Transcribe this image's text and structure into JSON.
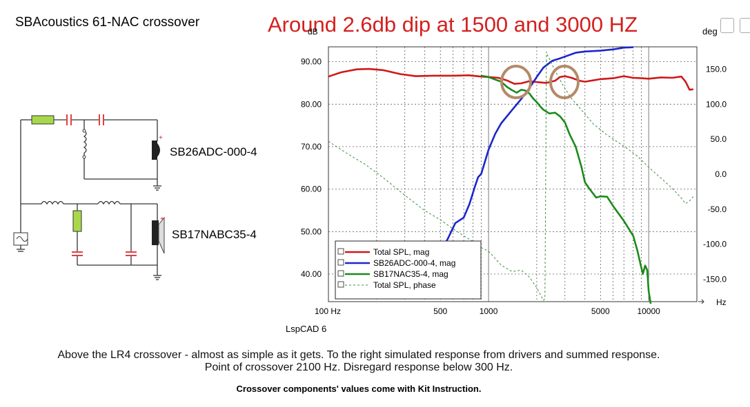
{
  "header": {
    "title": "SBAcoustics  61-NAC crossover",
    "annotation": "Around 2.6db dip at 1500 and 3000 HZ"
  },
  "schematic": {
    "tweeter_label": "SB26ADC-000-4",
    "woofer_label": "SB17NABC35-4",
    "plus_sign": "+"
  },
  "chart_data": {
    "type": "line",
    "title": "",
    "xlabel": "Hz",
    "ylabel": "dB",
    "y2label": "deg",
    "xscale": "log",
    "xlim": [
      100,
      20000
    ],
    "ylim": [
      33.5,
      93.5
    ],
    "y2lim": [
      -182,
      182
    ],
    "xticks": [
      {
        "v": 100,
        "label": "100 Hz"
      },
      {
        "v": 500,
        "label": "500"
      },
      {
        "v": 1000,
        "label": "1000"
      },
      {
        "v": 5000,
        "label": "5000"
      },
      {
        "v": 10000,
        "label": "10000"
      }
    ],
    "yticks": [
      {
        "v": 90,
        "label": "90.00"
      },
      {
        "v": 80,
        "label": "80.00"
      },
      {
        "v": 70,
        "label": "70.00"
      },
      {
        "v": 60,
        "label": "60.00"
      },
      {
        "v": 50,
        "label": "50.00"
      },
      {
        "v": 40,
        "label": "40.00"
      }
    ],
    "y2ticks": [
      {
        "v": 150,
        "label": "150.0"
      },
      {
        "v": 100,
        "label": "100.0"
      },
      {
        "v": 50,
        "label": "50.0"
      },
      {
        "v": 0,
        "label": "0.0"
      },
      {
        "v": -50,
        "label": "-50.0"
      },
      {
        "v": -100,
        "label": "-100.0"
      },
      {
        "v": -150,
        "label": "-150.0"
      }
    ],
    "series": [
      {
        "name": "Total SPL, mag",
        "color": "#d01818",
        "axis": "left",
        "style": "solid",
        "x": [
          100,
          120,
          150,
          180,
          220,
          280,
          350,
          450,
          600,
          750,
          900,
          1000,
          1150,
          1300,
          1450,
          1600,
          1800,
          2000,
          2300,
          2600,
          2800,
          3000,
          3300,
          3700,
          4000,
          4500,
          5000,
          6000,
          7000,
          8000,
          9000,
          10000,
          12000,
          14000,
          16000,
          17000,
          18000,
          19000
        ],
        "y": [
          86.5,
          87.5,
          88.2,
          88.3,
          88,
          87.1,
          86.6,
          86.7,
          86.7,
          86.8,
          86.5,
          86.4,
          86.2,
          85.6,
          84.8,
          84.9,
          85.4,
          85.2,
          85.0,
          85.5,
          86.4,
          86.6,
          86.2,
          85.5,
          85.3,
          85.6,
          85.9,
          86.1,
          86.6,
          86.2,
          86.1,
          86.0,
          86.3,
          86.2,
          86.5,
          85.3,
          83.4,
          83.5
        ]
      },
      {
        "name": "SB26ADC-000-4, mag",
        "color": "#1c25cc",
        "axis": "left",
        "style": "solid",
        "x": [
          500,
          560,
          620,
          700,
          760,
          820,
          860,
          900,
          950,
          1000,
          1100,
          1200,
          1400,
          1600,
          1800,
          2000,
          2200,
          2500,
          2800,
          3000,
          3500,
          4000,
          5000,
          6000,
          7000,
          8000
        ],
        "y": [
          45.0,
          48.5,
          52.0,
          53.3,
          56.5,
          60.5,
          62.8,
          63.6,
          66.5,
          69.3,
          73.0,
          75.5,
          78.6,
          81.2,
          83.8,
          86.4,
          88.6,
          90.2,
          90.8,
          91.2,
          92.1,
          92.4,
          92.6,
          92.9,
          93.3,
          93.4
        ]
      },
      {
        "name": "SB17NAC35-4, mag",
        "color": "#1a8a1a",
        "axis": "left",
        "style": "solid",
        "x": [
          900,
          1000,
          1100,
          1200,
          1300,
          1400,
          1500,
          1600,
          1700,
          1800,
          1900,
          2000,
          2100,
          2200,
          2400,
          2600,
          2800,
          3000,
          3200,
          3500,
          3800,
          4000,
          4300,
          4700,
          5000,
          5500,
          6000,
          7000,
          8000,
          8500,
          9000,
          9200,
          9500,
          9800,
          10000,
          10300
        ],
        "y": [
          86.7,
          86.4,
          85.8,
          85.3,
          84.1,
          83.3,
          82.7,
          83.4,
          83.2,
          82.5,
          81.3,
          80.5,
          79.5,
          78.7,
          77.8,
          78.0,
          77.1,
          75.7,
          73.0,
          70.0,
          65.3,
          61.6,
          59.9,
          58.0,
          58.3,
          58.2,
          56.0,
          52.5,
          49.0,
          45.5,
          41.5,
          40.0,
          42.0,
          40.9,
          36.0,
          33.0
        ]
      },
      {
        "name": "Total SPL, phase",
        "color": "#3a8c3a",
        "axis": "right",
        "style": "dashed",
        "x": [
          100,
          130,
          170,
          220,
          300,
          400,
          500,
          600,
          700,
          800,
          900,
          1000,
          1200,
          1400,
          1600,
          1800,
          2000,
          2200,
          2250,
          2300,
          2350,
          2400,
          2600,
          2900,
          3300,
          3800,
          4500,
          5500,
          7000,
          8500,
          10000,
          12000,
          14000,
          16000,
          17000,
          18000,
          19000
        ],
        "y": [
          47,
          30,
          14,
          -5,
          -30,
          -52,
          -65,
          -78,
          -88,
          -96,
          -105,
          -110,
          -130,
          -139,
          -137,
          -147,
          -162,
          -180,
          -178,
          175,
          168,
          165,
          148,
          128,
          108,
          92,
          72,
          56,
          40,
          26,
          10,
          -6,
          -20,
          -34,
          -42,
          -38,
          -32
        ]
      }
    ]
  },
  "legend": {
    "items": [
      {
        "label": "Total SPL, mag",
        "color": "#d01818"
      },
      {
        "label": "SB26ADC-000-4, mag",
        "color": "#1c25cc"
      },
      {
        "label": "SB17NAC35-4, mag",
        "color": "#1a8a1a"
      },
      {
        "label": "Total SPL, phase",
        "color": "#3a8c3a"
      }
    ]
  },
  "footer": {
    "software": "LspCAD 6",
    "description_line1": "Above the LR4 crossover - almost as simple as it gets. To the right simulated response from drivers and summed response.",
    "description_line2": "Point of crossover 2100 Hz. Disregard response below 300 Hz.",
    "note": "Crossover components' values come with Kit Instruction."
  },
  "colors": {
    "annotation": "#d42020",
    "circle": "#b48a6a",
    "resistor": "#a8d84a",
    "capacitor": "#e04040"
  }
}
